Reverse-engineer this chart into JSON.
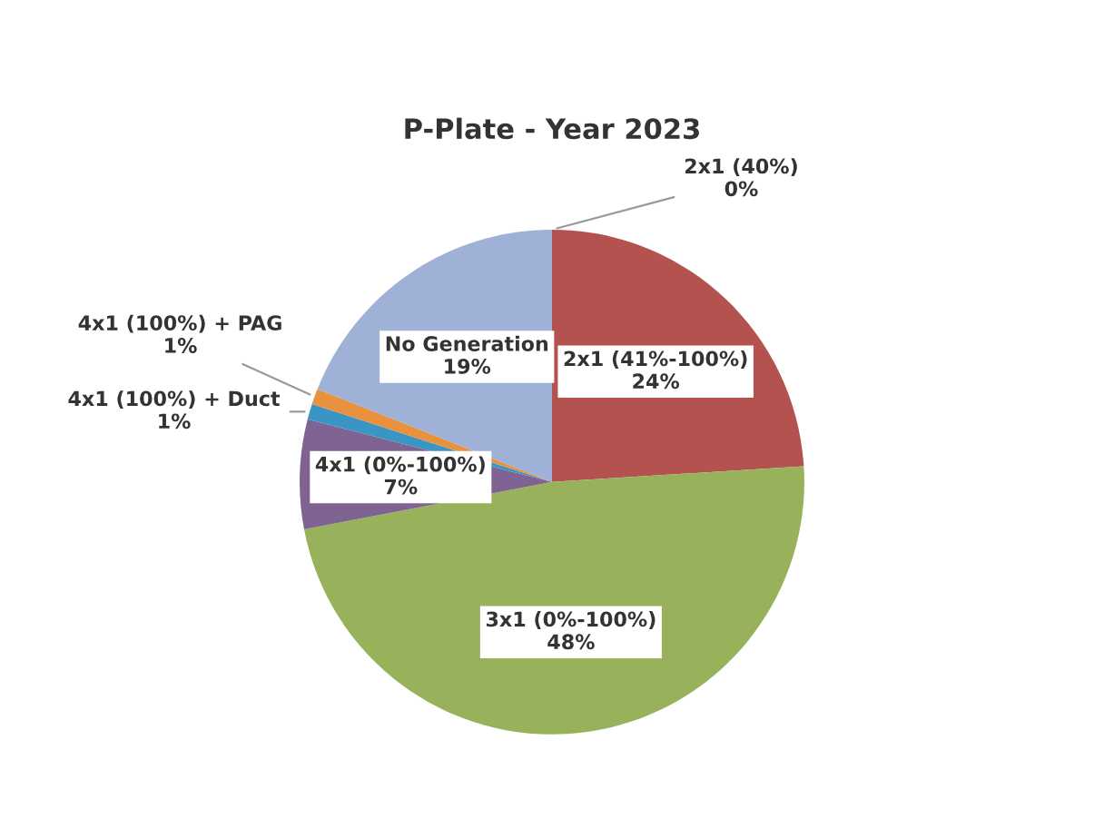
{
  "chart_data": {
    "type": "pie",
    "title": "P-Plate - Year 2023",
    "categories": [
      "2x1 (40%)",
      "2x1 (41%-100%)",
      "3x1 (0%-100%)",
      "4x1 (0%-100%)",
      "4x1 (100%) + Duct",
      "4x1 (100%) + PAG",
      "No Generation"
    ],
    "values": [
      0,
      24,
      48,
      7,
      1,
      1,
      19
    ],
    "colors": [
      "#4f81bd",
      "#b45250",
      "#98b25c",
      "#7f6392",
      "#3a95c4",
      "#e8923f",
      "#9fb1d6"
    ],
    "value_labels": [
      "0%",
      "24%",
      "48%",
      "7%",
      "1%",
      "1%",
      "19%"
    ],
    "legend": false
  }
}
